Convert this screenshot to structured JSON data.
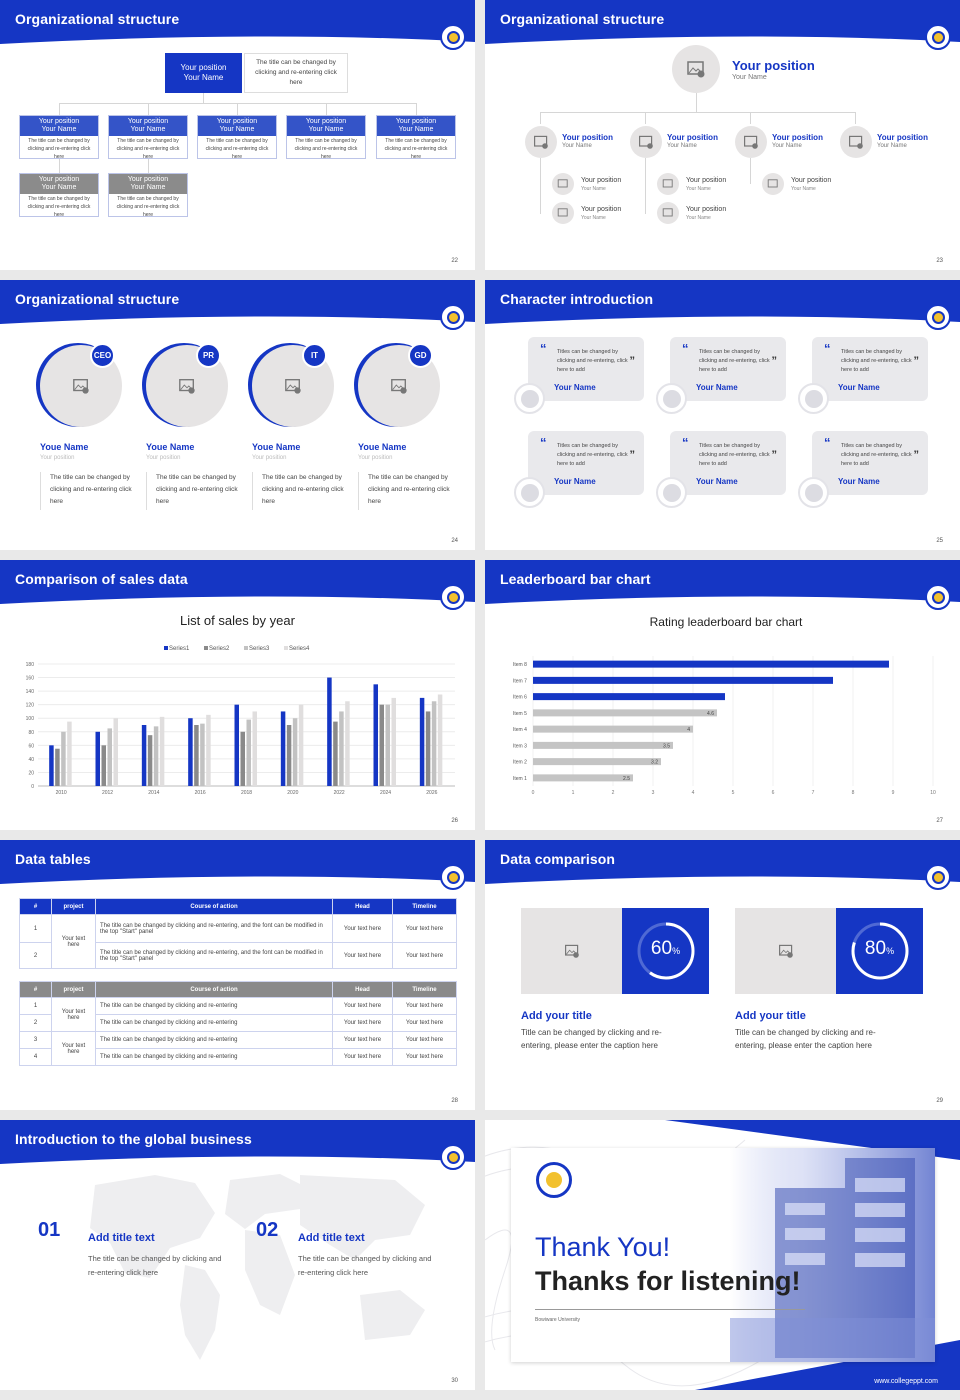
{
  "slides": [
    {
      "title": "Organizational structure",
      "page": "22",
      "top": {
        "pos": "Your position",
        "name": "Your Name",
        "desc": "The title can be changed by clicking and re-entering click here"
      },
      "boxes": [
        {
          "pos": "Your position",
          "name": "Your Name",
          "desc": "The title can be changed by clicking and re-entering click here"
        },
        {
          "pos": "Your position",
          "name": "Your Name",
          "desc": "The title can be changed by clicking and re-entering click here"
        },
        {
          "pos": "Your position",
          "name": "Your Name",
          "desc": "The title can be changed by clicking and re-entering click here"
        },
        {
          "pos": "Your position",
          "name": "Your Name",
          "desc": "The title can be changed by clicking and re-entering click here"
        },
        {
          "pos": "Your position",
          "name": "Your Name",
          "desc": "The title can be changed by clicking and re-entering click here"
        },
        {
          "pos": "Your position",
          "name": "Your Name",
          "desc": "The title can be changed by clicking and re-entering click here"
        },
        {
          "pos": "Your position",
          "name": "Your Name",
          "desc": "The title can be changed by clicking and re-entering click here"
        }
      ]
    },
    {
      "title": "Organizational structure",
      "page": "23",
      "top": {
        "pos": "Your position",
        "name": "Your Name"
      },
      "level2": [
        {
          "pos": "Your position",
          "name": "Your Name"
        },
        {
          "pos": "Your position",
          "name": "Your Name"
        },
        {
          "pos": "Your position",
          "name": "Your Name"
        },
        {
          "pos": "Your position",
          "name": "Your Name"
        }
      ],
      "level3": [
        {
          "pos": "Your position",
          "name": "Your Name"
        },
        {
          "pos": "Your position",
          "name": "Your Name"
        },
        {
          "pos": "Your position",
          "name": "Your Name"
        },
        {
          "pos": "Your position",
          "name": "Your Name"
        },
        {
          "pos": "Your position",
          "name": "Your Name"
        }
      ]
    },
    {
      "title": "Organizational structure",
      "page": "24",
      "people": [
        {
          "tag": "CEO",
          "name": "Youe Name",
          "pos": "Your position",
          "desc": "The title can be changed by clicking and re-entering click here"
        },
        {
          "tag": "PR",
          "name": "Youe Name",
          "pos": "Your position",
          "desc": "The title can be changed by clicking and re-entering click here"
        },
        {
          "tag": "IT",
          "name": "Youe Name",
          "pos": "Your position",
          "desc": "The title can be changed by clicking and re-entering click here"
        },
        {
          "tag": "GD",
          "name": "Youe Name",
          "pos": "Your position",
          "desc": "The title can be changed by clicking and re-entering click here"
        }
      ]
    },
    {
      "title": "Character introduction",
      "page": "25",
      "cards": [
        {
          "text": "Titles can be changed by clicking and re-entering, click here to add",
          "name": "Your Name"
        },
        {
          "text": "Titles can be changed by clicking and re-entering, click here to add",
          "name": "Your Name"
        },
        {
          "text": "Titles can be changed by clicking and re-entering, click here to add",
          "name": "Your Name"
        },
        {
          "text": "Titles can be changed by clicking and re-entering, click here to add",
          "name": "Your Name"
        },
        {
          "text": "Titles can be changed by clicking and re-entering, click here to add",
          "name": "Your Name"
        },
        {
          "text": "Titles can be changed by clicking and re-entering, click here to add",
          "name": "Your Name"
        }
      ]
    },
    {
      "title": "Comparison of sales data",
      "page": "26"
    },
    {
      "title": "Leaderboard bar chart",
      "page": "27"
    },
    {
      "title": "Data tables",
      "page": "28",
      "table1": {
        "headers": [
          "#",
          "project",
          "Course of action",
          "Head",
          "Timeline"
        ],
        "rows": [
          {
            "num": "1",
            "course": "The title can be changed by clicking and re-entering, and the font can be modified in the top \"Start\" panel",
            "head": "Your text here",
            "time": "Your text here"
          },
          {
            "num": "2",
            "course": "The title can be changed by clicking and re-entering, and the font can be modified in the top \"Start\" panel",
            "head": "Your text here",
            "time": "Your text here"
          }
        ],
        "project": "Your text here"
      },
      "table2": {
        "headers": [
          "#",
          "project",
          "Course of action",
          "Head",
          "Timeline"
        ],
        "rows": [
          {
            "num": "1",
            "course": "The title can be changed by clicking and re-entering",
            "head": "Your text here",
            "time": "Your text here"
          },
          {
            "num": "2",
            "course": "The title can be changed by clicking and re-entering",
            "head": "Your text here",
            "time": "Your text here"
          },
          {
            "num": "3",
            "course": "The title can be changed by clicking and re-entering",
            "head": "Your text here",
            "time": "Your text here"
          },
          {
            "num": "4",
            "course": "The title can be changed by clicking and re-entering",
            "head": "Your text here",
            "time": "Your text here"
          }
        ],
        "projects": [
          "Your text here",
          "Your text here"
        ]
      }
    },
    {
      "title": "Data comparison",
      "page": "29",
      "items": [
        {
          "value": 60,
          "unit": "%",
          "title": "Add your title",
          "desc": "Title can be changed by clicking and re-entering, please enter the caption here"
        },
        {
          "value": 80,
          "unit": "%",
          "title": "Add your title",
          "desc": "Title can be changed by clicking and re-entering, please enter the caption here"
        }
      ]
    },
    {
      "title": "Introduction to the global business",
      "page": "30",
      "items": [
        {
          "num": "01",
          "title": "Add title text",
          "desc": "The title can be changed by clicking and re-entering click here"
        },
        {
          "num": "02",
          "title": "Add title text",
          "desc": "The title can be changed by clicking and re-entering click here"
        }
      ]
    },
    {
      "thank": "Thank You!",
      "listen": "Thanks for listening!",
      "uni": "Bowiware University",
      "url": "www.collegeppt.com",
      "logo_text": "BRAINWARE UNIVERSITY"
    }
  ],
  "chart_data": [
    {
      "type": "bar",
      "title": "List of sales by year",
      "categories": [
        "2010",
        "2012",
        "2014",
        "2016",
        "2018",
        "2020",
        "2022",
        "2024",
        "2026"
      ],
      "series": [
        {
          "name": "Series1",
          "color": "#1536c4",
          "values": [
            60,
            80,
            90,
            100,
            120,
            110,
            160,
            150,
            130
          ]
        },
        {
          "name": "Series2",
          "color": "#8a8a8a",
          "values": [
            55,
            60,
            75,
            90,
            80,
            90,
            95,
            120,
            110
          ]
        },
        {
          "name": "Series3",
          "color": "#c2c2c2",
          "values": [
            80,
            85,
            88,
            92,
            98,
            100,
            110,
            120,
            125
          ]
        },
        {
          "name": "Series4",
          "color": "#e0dede",
          "values": [
            95,
            100,
            102,
            105,
            110,
            120,
            125,
            130,
            135
          ]
        }
      ],
      "ylim": [
        0,
        180
      ],
      "yticks": [
        "0",
        "20",
        "40",
        "60",
        "80",
        "100",
        "120",
        "140",
        "160",
        "180"
      ]
    },
    {
      "type": "bar",
      "orientation": "horizontal",
      "title": "Rating leaderboard bar chart",
      "categories": [
        "Item 1",
        "Item 2",
        "Item 3",
        "Item 4",
        "Item 5",
        "Item 6",
        "Item 7",
        "Item 8"
      ],
      "values": [
        2.5,
        3.2,
        3.5,
        4,
        4.6,
        4.8,
        7.5,
        8.9
      ],
      "labels": [
        "2.5",
        "3.2",
        "3.5",
        "4",
        "4.6",
        "",
        "",
        ""
      ],
      "highlight_color": "#1536c4",
      "base_color": "#c4c4c4",
      "xlim": [
        0,
        10
      ],
      "xticks": [
        "0",
        "1",
        "2",
        "3",
        "4",
        "5",
        "6",
        "7",
        "8",
        "9",
        "10"
      ]
    }
  ]
}
